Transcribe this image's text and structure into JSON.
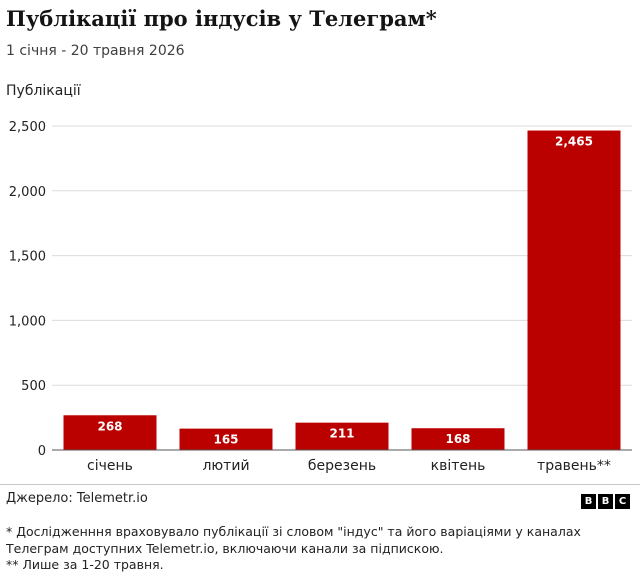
{
  "header": {
    "title": "Публікації про індусів у Телеграм*",
    "subtitle": "1 січня - 20 травня 2026"
  },
  "chart_data": {
    "type": "bar",
    "ylabel": "Публікації",
    "categories": [
      "січень",
      "лютий",
      "березень",
      "квітень",
      "травень**"
    ],
    "values": [
      268,
      165,
      211,
      168,
      2465
    ],
    "value_labels": [
      "268",
      "165",
      "211",
      "168",
      "2,465"
    ],
    "ylim": [
      0,
      2500
    ],
    "yticks": [
      0,
      500,
      1000,
      1500,
      2000,
      2500
    ],
    "ytick_labels": [
      "0",
      "500",
      "1,000",
      "1,500",
      "2,000",
      "2,500"
    ],
    "grid": true,
    "bar_color": "#bb0000"
  },
  "footer": {
    "source": "Джерело: Telemetr.io",
    "logo_letters": [
      "B",
      "B",
      "C"
    ],
    "notes": [
      "* Дослідженння враховувало публікації зі словом \"індус\" та його варіаціями у каналах",
      "Телеграм доступних Telemetr.io, включаючи канали за підпискою.",
      "** Лише за 1-20 травня."
    ]
  }
}
